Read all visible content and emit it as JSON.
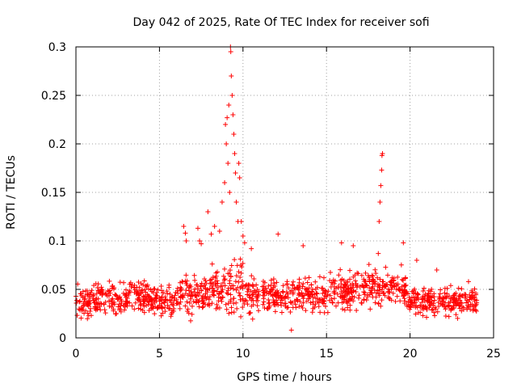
{
  "chart_data": {
    "type": "scatter",
    "title": "Day 042 of 2025, Rate Of TEC Index for receiver sofi",
    "xlabel": "GPS time / hours",
    "ylabel": "ROTI / TECUs",
    "xlim": [
      0,
      25
    ],
    "ylim": [
      0,
      0.3
    ],
    "xticks": [
      0,
      5,
      10,
      15,
      20,
      25
    ],
    "xtick_labels": [
      "0",
      "5",
      "10",
      "15",
      "20",
      "25"
    ],
    "yticks": [
      0,
      0.05,
      0.1,
      0.15,
      0.2,
      0.25,
      0.3
    ],
    "ytick_labels": [
      "0",
      "0.05",
      "0.1",
      "0.15",
      "0.2",
      "0.25",
      "0.3"
    ],
    "grid": true,
    "marker": "plus",
    "color": "#ff0000",
    "data_gap_hours": [
      10.95,
      11.15
    ],
    "series": [
      {
        "name": "ROTI",
        "baseline_segments": [
          {
            "t0": 0.0,
            "t1": 1.0,
            "min": 0.015,
            "max": 0.062
          },
          {
            "t0": 1.0,
            "t1": 4.5,
            "min": 0.018,
            "max": 0.065
          },
          {
            "t0": 4.5,
            "t1": 6.3,
            "min": 0.017,
            "max": 0.062
          },
          {
            "t0": 6.3,
            "t1": 8.0,
            "min": 0.015,
            "max": 0.078
          },
          {
            "t0": 8.0,
            "t1": 9.0,
            "min": 0.015,
            "max": 0.085
          },
          {
            "t0": 9.0,
            "t1": 10.0,
            "min": 0.012,
            "max": 0.09
          },
          {
            "t0": 10.0,
            "t1": 10.95,
            "min": 0.015,
            "max": 0.075
          },
          {
            "t0": 11.15,
            "t1": 15.0,
            "min": 0.02,
            "max": 0.07
          },
          {
            "t0": 15.0,
            "t1": 17.5,
            "min": 0.02,
            "max": 0.075
          },
          {
            "t0": 17.5,
            "t1": 19.8,
            "min": 0.025,
            "max": 0.078
          },
          {
            "t0": 19.8,
            "t1": 24.0,
            "min": 0.018,
            "max": 0.058
          }
        ],
        "notable_points": [
          {
            "x": 6.45,
            "y": 0.115
          },
          {
            "x": 6.55,
            "y": 0.108
          },
          {
            "x": 6.6,
            "y": 0.1
          },
          {
            "x": 7.3,
            "y": 0.113
          },
          {
            "x": 7.4,
            "y": 0.1
          },
          {
            "x": 7.5,
            "y": 0.097
          },
          {
            "x": 7.9,
            "y": 0.13
          },
          {
            "x": 8.1,
            "y": 0.107
          },
          {
            "x": 8.3,
            "y": 0.115
          },
          {
            "x": 8.6,
            "y": 0.11
          },
          {
            "x": 8.75,
            "y": 0.14
          },
          {
            "x": 8.9,
            "y": 0.16
          },
          {
            "x": 8.95,
            "y": 0.22
          },
          {
            "x": 9.0,
            "y": 0.2
          },
          {
            "x": 9.05,
            "y": 0.227
          },
          {
            "x": 9.1,
            "y": 0.18
          },
          {
            "x": 9.15,
            "y": 0.24
          },
          {
            "x": 9.2,
            "y": 0.15
          },
          {
            "x": 9.25,
            "y": 0.3
          },
          {
            "x": 9.27,
            "y": 0.295
          },
          {
            "x": 9.3,
            "y": 0.27
          },
          {
            "x": 9.35,
            "y": 0.25
          },
          {
            "x": 9.4,
            "y": 0.23
          },
          {
            "x": 9.45,
            "y": 0.21
          },
          {
            "x": 9.5,
            "y": 0.19
          },
          {
            "x": 9.55,
            "y": 0.17
          },
          {
            "x": 9.6,
            "y": 0.14
          },
          {
            "x": 9.7,
            "y": 0.12
          },
          {
            "x": 9.75,
            "y": 0.18
          },
          {
            "x": 9.8,
            "y": 0.165
          },
          {
            "x": 9.9,
            "y": 0.12
          },
          {
            "x": 10.0,
            "y": 0.105
          },
          {
            "x": 10.1,
            "y": 0.098
          },
          {
            "x": 10.5,
            "y": 0.092
          },
          {
            "x": 12.1,
            "y": 0.107
          },
          {
            "x": 12.9,
            "y": 0.008
          },
          {
            "x": 13.6,
            "y": 0.095
          },
          {
            "x": 15.9,
            "y": 0.098
          },
          {
            "x": 16.6,
            "y": 0.095
          },
          {
            "x": 18.1,
            "y": 0.087
          },
          {
            "x": 18.15,
            "y": 0.12
          },
          {
            "x": 18.2,
            "y": 0.14
          },
          {
            "x": 18.25,
            "y": 0.157
          },
          {
            "x": 18.3,
            "y": 0.173
          },
          {
            "x": 18.32,
            "y": 0.188
          },
          {
            "x": 18.35,
            "y": 0.19
          },
          {
            "x": 19.6,
            "y": 0.098
          },
          {
            "x": 20.4,
            "y": 0.08
          },
          {
            "x": 21.6,
            "y": 0.07
          },
          {
            "x": 23.5,
            "y": 0.058
          }
        ]
      }
    ]
  }
}
